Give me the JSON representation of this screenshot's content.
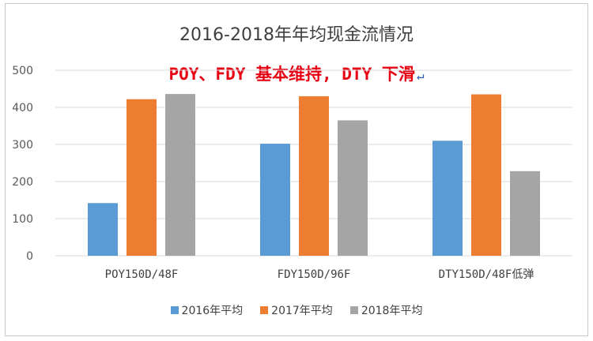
{
  "chart_data": {
    "type": "bar",
    "title": "2016-2018年年均现金流情况",
    "annotation": "POY、FDY 基本维持, DTY 下滑",
    "categories": [
      "POY150D/48F",
      "FDY150D/96F",
      "DTY150D/48F低弹"
    ],
    "series": [
      {
        "name": "2016年平均",
        "values": [
          142,
          302,
          310
        ],
        "color": "#5b9bd5"
      },
      {
        "name": "2017年平均",
        "values": [
          422,
          430,
          435
        ],
        "color": "#ed7d31"
      },
      {
        "name": "2018年平均",
        "values": [
          436,
          365,
          228
        ],
        "color": "#a5a5a5"
      }
    ],
    "ylim": [
      0,
      500
    ],
    "yticks": [
      0,
      100,
      200,
      300,
      400,
      500
    ],
    "grid": true,
    "legend": "bottom"
  }
}
